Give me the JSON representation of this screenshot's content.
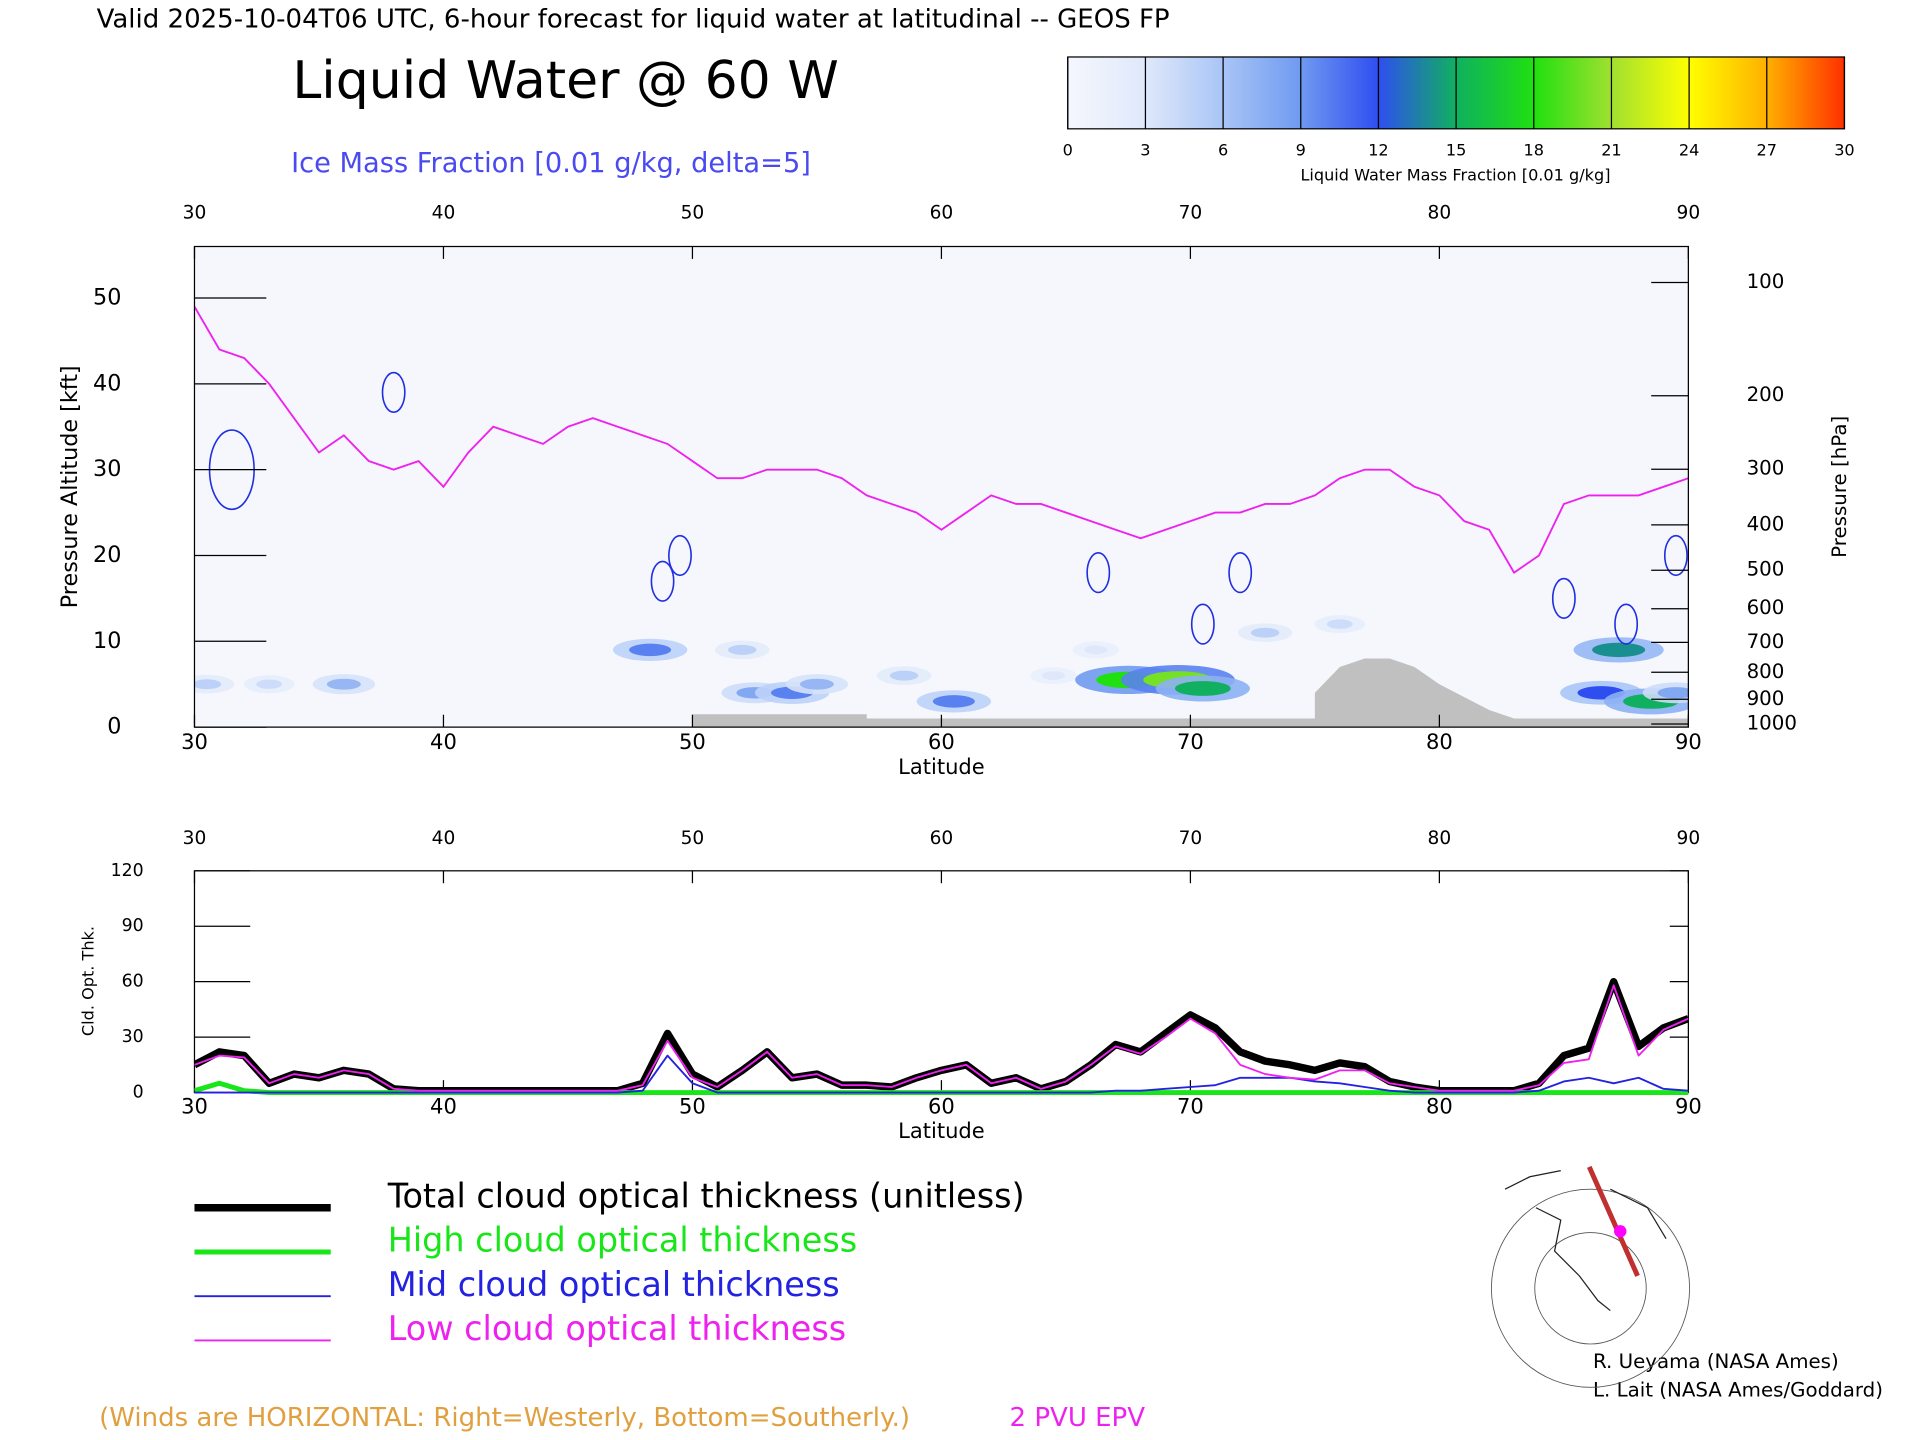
{
  "header": {
    "text": "Valid 2025-10-04T06 UTC, 6-hour forecast for liquid water at latitudinal -- GEOS FP"
  },
  "notes": {
    "winds": "(Winds are HORIZONTAL: Right=Westerly, Bottom=Southerly.)"
  },
  "credits": [
    "R. Ueyama (NASA Ames)",
    "L. Lait (NASA Ames/Goddard)"
  ],
  "chart_data": [
    {
      "type": "cross_section",
      "title": "Liquid Water @ 60 W",
      "subtitle": "Ice Mass Fraction [0.01 g/kg, delta=5]",
      "x_label": "Latitude",
      "y_label": "Pressure Altitude [kft]",
      "y2_label": "Pressure [hPa]",
      "xlim": [
        30,
        90
      ],
      "xticks": [
        30,
        40,
        50,
        60,
        70,
        80,
        90
      ],
      "ylim": [
        0,
        56
      ],
      "yticks": [
        0,
        10,
        20,
        30,
        40,
        50
      ],
      "y2scale": "pressure_altitude",
      "y2ticks": [
        100,
        200,
        300,
        400,
        500,
        600,
        700,
        800,
        900,
        1000
      ],
      "colorbar": {
        "label": "Liquid Water Mass Fraction [0.01 g/kg]",
        "ticks": [
          0,
          3,
          6,
          9,
          12,
          15,
          18,
          21,
          24,
          27,
          30
        ],
        "colors": [
          "#f5f7fd",
          "#dfe8fb",
          "#a9c5f6",
          "#6f9af0",
          "#2f4ef0",
          "#10b060",
          "#20e010",
          "#a0e030",
          "#ffff00",
          "#ffb000",
          "#ff3000"
        ]
      },
      "liquid_water": {
        "x": [
          30.5,
          33,
          36,
          48.3,
          52,
          52.5,
          54,
          55,
          58.5,
          60.5,
          64.5,
          66.2,
          67.5,
          69.5,
          70.5,
          73,
          76,
          86.5,
          87.2,
          88.5,
          89.5
        ],
        "y": [
          5,
          5,
          5,
          9,
          9,
          4,
          4,
          5,
          6,
          3,
          6,
          9,
          5.5,
          5.5,
          4.5,
          11,
          12,
          4,
          9,
          3,
          4
        ],
        "values": [
          5,
          4,
          7,
          10,
          5,
          8,
          10,
          7,
          5,
          10,
          3,
          3,
          18,
          20,
          15,
          5,
          4,
          12,
          14,
          15,
          8
        ]
      },
      "ice_mass_fraction": {
        "color": "#2030e0",
        "x": [
          31.5,
          38,
          49.5,
          48.8,
          66.3,
          72,
          70.5,
          85,
          87.5,
          89.5
        ],
        "y": [
          30,
          39,
          20,
          17,
          18,
          18,
          12,
          15,
          12,
          20
        ],
        "values": [
          10,
          5,
          5,
          5,
          5,
          5,
          5,
          5,
          5,
          5
        ]
      },
      "tropopause": {
        "name": "2 PVU EPV",
        "color": "#ee22ee",
        "x": [
          30,
          31,
          32,
          33,
          34,
          35,
          36,
          37,
          38,
          39,
          40,
          41,
          42,
          43,
          44,
          45,
          46,
          47,
          48,
          49,
          50,
          51,
          52,
          53,
          54,
          55,
          56,
          57,
          58,
          59,
          60,
          61,
          62,
          63,
          64,
          65,
          66,
          67,
          68,
          69,
          70,
          71,
          72,
          73,
          74,
          75,
          76,
          77,
          78,
          79,
          80,
          81,
          82,
          83,
          84,
          85,
          86,
          87,
          88,
          89,
          90
        ],
        "values": [
          49,
          44,
          43,
          40,
          36,
          32,
          34,
          31,
          30,
          31,
          28,
          32,
          35,
          34,
          33,
          35,
          36,
          35,
          34,
          33,
          31,
          29,
          29,
          30,
          30,
          30,
          29,
          27,
          26,
          25,
          23,
          25,
          27,
          26,
          26,
          25,
          24,
          23,
          22,
          23,
          24,
          25,
          25,
          26,
          26,
          27,
          29,
          30,
          30,
          28,
          27,
          24,
          23,
          18,
          20,
          26,
          27,
          27,
          27,
          28,
          29
        ]
      },
      "terrain": {
        "color": "#c0c0c0",
        "x": [
          30,
          50,
          50,
          57,
          57,
          75,
          75,
          76,
          77,
          78,
          79,
          80,
          81,
          82,
          83,
          84,
          90
        ],
        "values": [
          0,
          0,
          1.5,
          1.5,
          1,
          1,
          4,
          7,
          8,
          8,
          7,
          5,
          3.5,
          2,
          1,
          1,
          1
        ]
      }
    },
    {
      "type": "line",
      "x_label": "Latitude",
      "y_label": "Cld. Opt. Thk.",
      "xlim": [
        30,
        90
      ],
      "xticks": [
        30,
        40,
        50,
        60,
        70,
        80,
        90
      ],
      "ylim": [
        0,
        120
      ],
      "yticks": [
        0,
        30,
        60,
        90,
        120
      ],
      "x": [
        30,
        31,
        32,
        33,
        34,
        35,
        36,
        37,
        38,
        39,
        40,
        41,
        42,
        43,
        44,
        45,
        46,
        47,
        48,
        49,
        50,
        51,
        52,
        53,
        54,
        55,
        56,
        57,
        58,
        59,
        60,
        61,
        62,
        63,
        64,
        65,
        66,
        67,
        68,
        69,
        70,
        71,
        72,
        73,
        74,
        75,
        76,
        77,
        78,
        79,
        80,
        81,
        82,
        83,
        84,
        85,
        86,
        87,
        88,
        89,
        90
      ],
      "series": [
        {
          "name": "Total cloud optical thickness (unitless)",
          "color": "#000000",
          "width": 6,
          "values": [
            15,
            22,
            20,
            5,
            10,
            8,
            12,
            10,
            2,
            1,
            1,
            1,
            1,
            1,
            1,
            1,
            1,
            1,
            5,
            32,
            10,
            3,
            12,
            22,
            8,
            10,
            4,
            4,
            3,
            8,
            12,
            15,
            5,
            8,
            2,
            6,
            15,
            26,
            22,
            32,
            42,
            35,
            22,
            17,
            15,
            12,
            16,
            14,
            6,
            3,
            1,
            1,
            1,
            1,
            5,
            20,
            24,
            60,
            25,
            35,
            40
          ]
        },
        {
          "name": "High cloud optical thickness",
          "color": "#19e619",
          "width": 4,
          "values": [
            1,
            5,
            1,
            0,
            0,
            0,
            0,
            0,
            0,
            0,
            0,
            0,
            0,
            0,
            0,
            0,
            0,
            0,
            0,
            0,
            0,
            0,
            0,
            0,
            0,
            0,
            0,
            0,
            0,
            0,
            0,
            0,
            0,
            0,
            0,
            0,
            0,
            0,
            0,
            0,
            0,
            0,
            0,
            0,
            0,
            0,
            0,
            0,
            0,
            0,
            0,
            0,
            0,
            0,
            0,
            0,
            0,
            0,
            0,
            0,
            0
          ]
        },
        {
          "name": "Mid cloud optical thickness",
          "color": "#2222e0",
          "width": 1.5,
          "values": [
            0,
            0,
            0,
            0,
            0,
            0,
            0,
            0,
            0,
            0,
            0,
            0,
            0,
            0,
            0,
            0,
            0,
            0,
            1,
            20,
            5,
            0,
            0,
            0,
            0,
            0,
            0,
            0,
            0,
            0,
            0,
            0,
            0,
            0,
            0,
            0,
            0,
            1,
            1,
            2,
            3,
            4,
            8,
            8,
            8,
            6,
            5,
            3,
            1,
            0,
            0,
            0,
            0,
            0,
            1,
            6,
            8,
            5,
            8,
            2,
            1
          ]
        },
        {
          "name": "Low cloud optical thickness",
          "color": "#ee22ee",
          "width": 1.5,
          "values": [
            15,
            20,
            19,
            5,
            10,
            8,
            12,
            10,
            2,
            1,
            1,
            1,
            1,
            1,
            1,
            1,
            1,
            1,
            4,
            28,
            8,
            3,
            12,
            22,
            8,
            10,
            4,
            4,
            3,
            8,
            12,
            15,
            5,
            8,
            2,
            6,
            15,
            25,
            21,
            30,
            40,
            32,
            15,
            10,
            8,
            7,
            12,
            12,
            5,
            3,
            1,
            1,
            1,
            1,
            4,
            16,
            18,
            58,
            20,
            34,
            40
          ]
        }
      ]
    }
  ]
}
